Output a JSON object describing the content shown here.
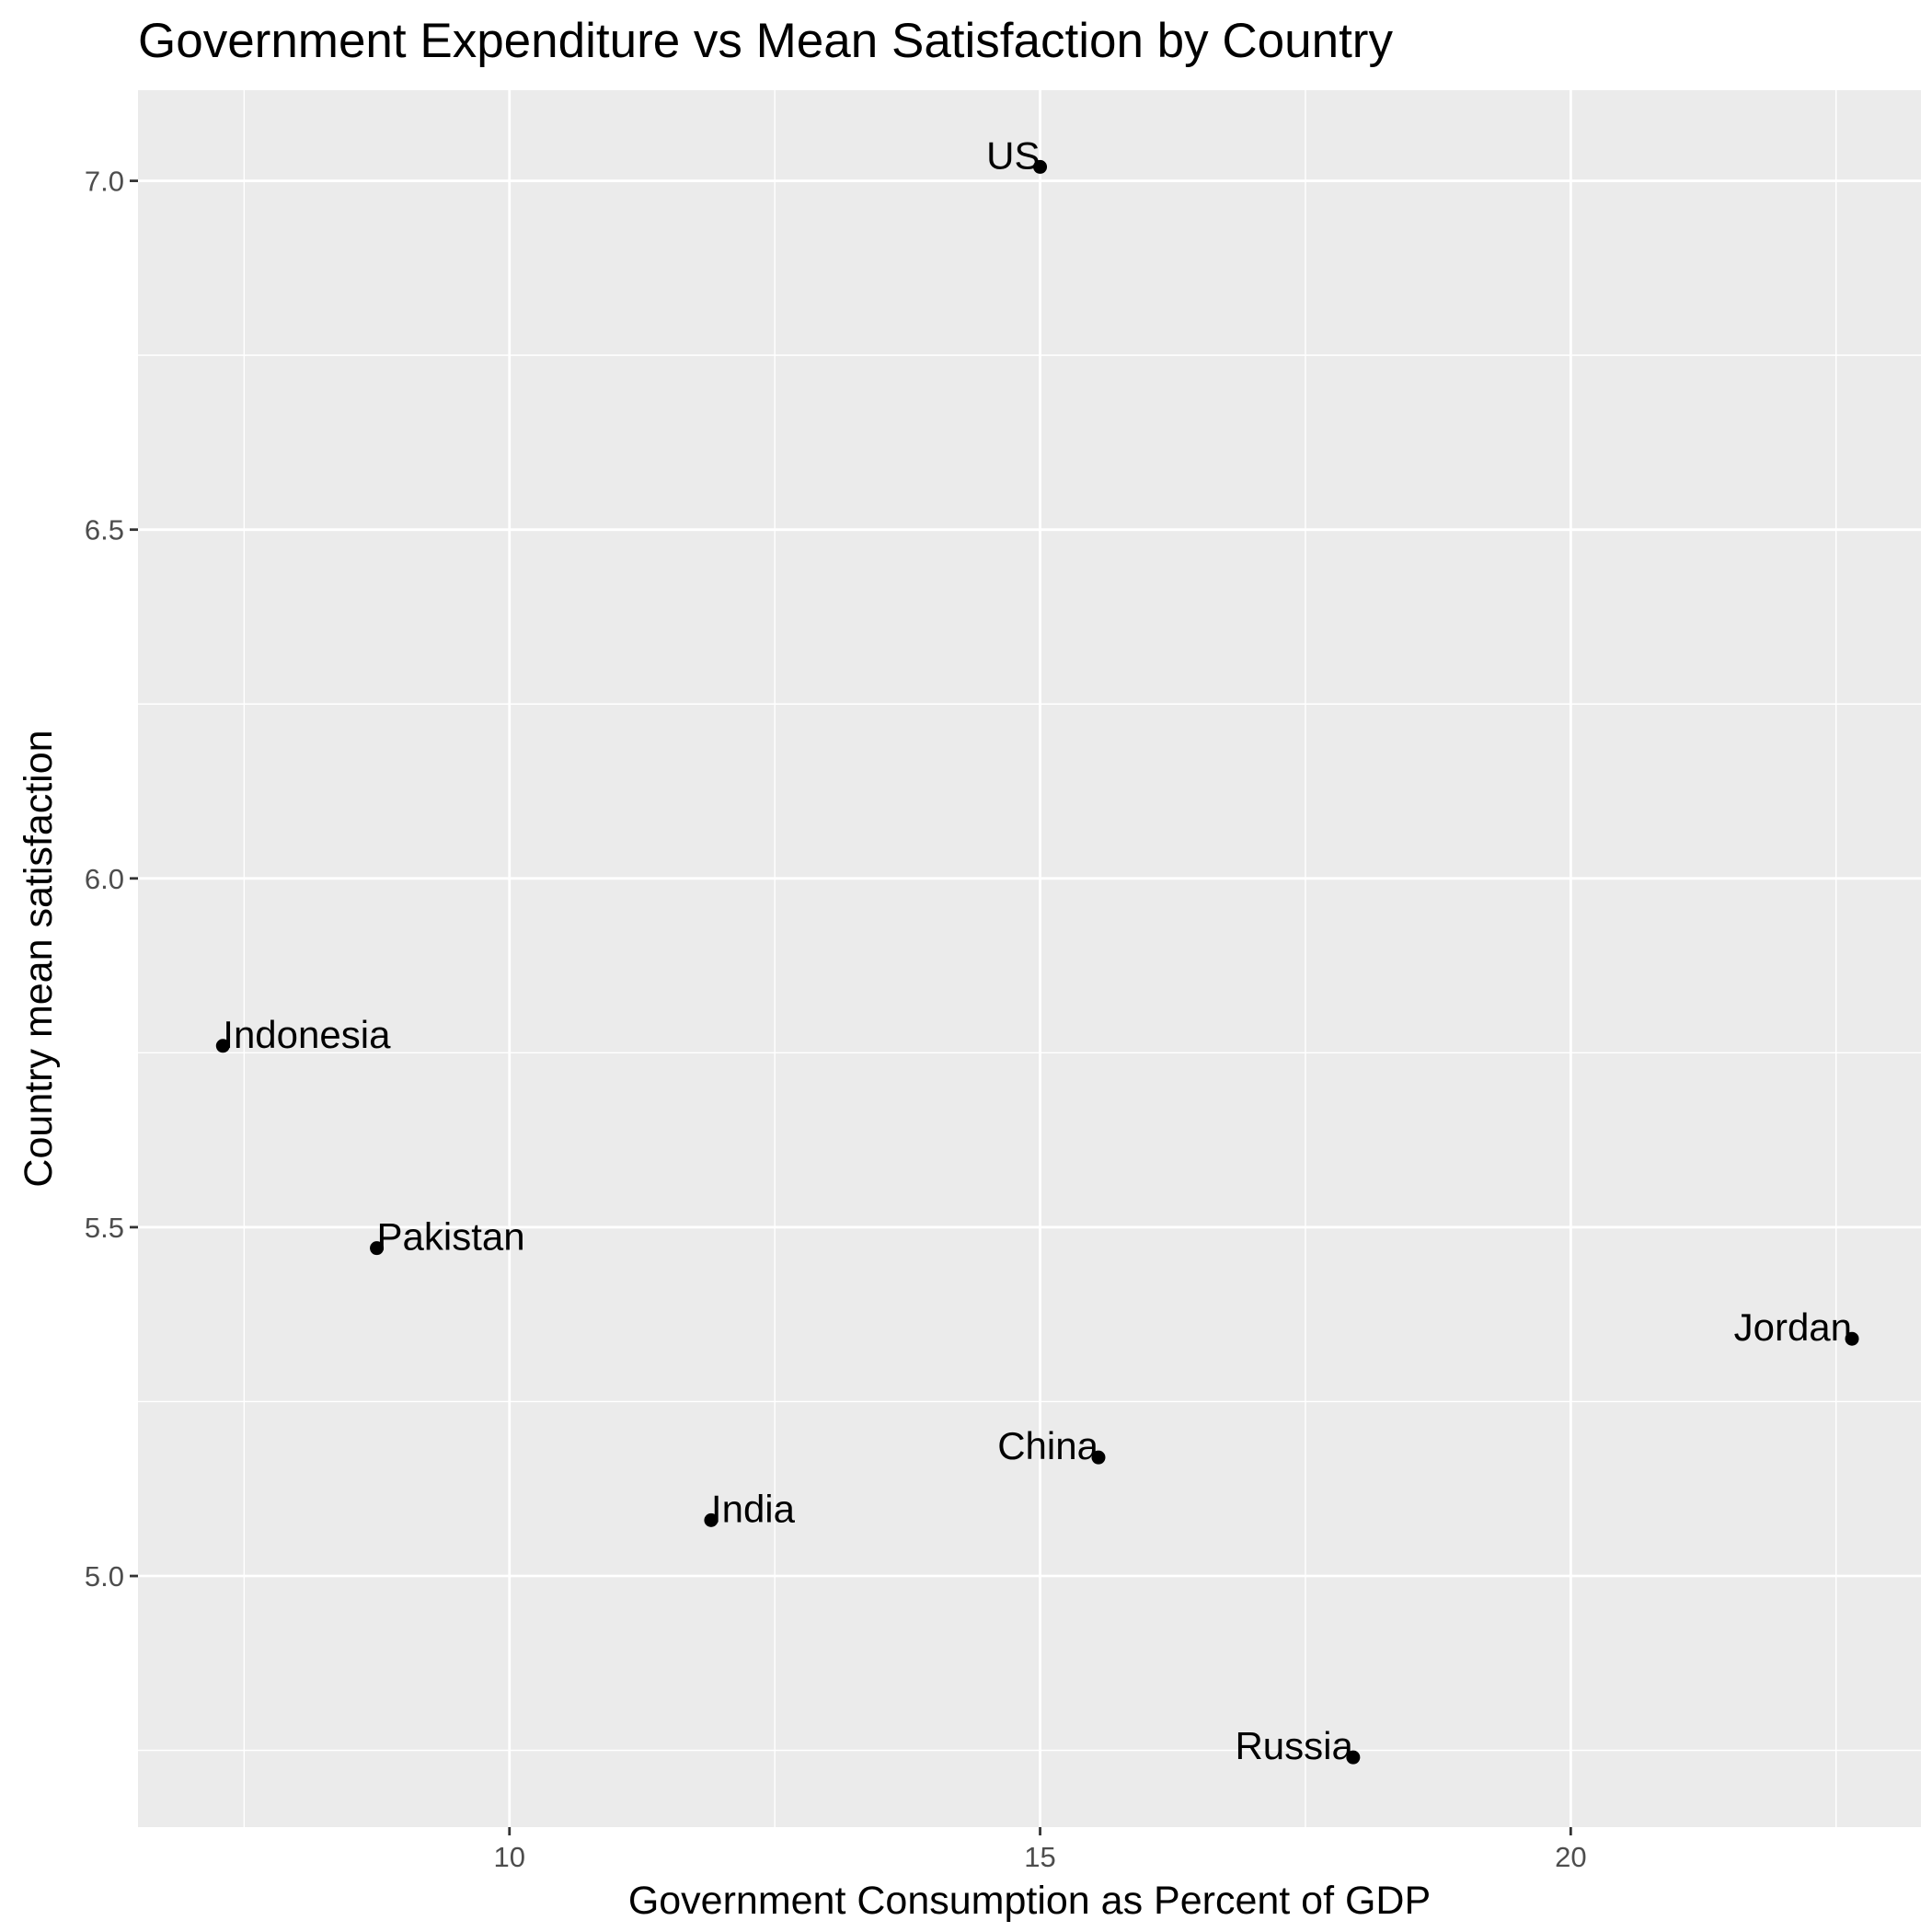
{
  "chart_data": {
    "type": "scatter",
    "title": "Government Expenditure vs Mean Satisfaction by Country",
    "xlabel": "Government Consumption as Percent of GDP",
    "ylabel": "Country mean satisfaction",
    "xlim": [
      6.5,
      23.3
    ],
    "ylim": [
      4.64,
      7.13
    ],
    "x_ticks": [
      10,
      15,
      20
    ],
    "x_tick_labels": [
      "10",
      "15",
      "20"
    ],
    "y_ticks": [
      5.0,
      5.5,
      6.0,
      6.5,
      7.0
    ],
    "y_tick_labels": [
      "5.0",
      "5.5",
      "6.0",
      "6.5",
      "7.0"
    ],
    "grid": true,
    "points": [
      {
        "label": "US",
        "x": 15.0,
        "y": 7.02,
        "label_align": "end"
      },
      {
        "label": "Indonesia",
        "x": 7.3,
        "y": 5.76,
        "label_align": "start"
      },
      {
        "label": "Pakistan",
        "x": 8.75,
        "y": 5.47,
        "label_align": "start"
      },
      {
        "label": "Jordan",
        "x": 22.65,
        "y": 5.34,
        "label_align": "end"
      },
      {
        "label": "China",
        "x": 15.55,
        "y": 5.17,
        "label_align": "end"
      },
      {
        "label": "India",
        "x": 11.9,
        "y": 5.08,
        "label_align": "start"
      },
      {
        "label": "Russia",
        "x": 17.95,
        "y": 4.74,
        "label_align": "end"
      }
    ]
  }
}
